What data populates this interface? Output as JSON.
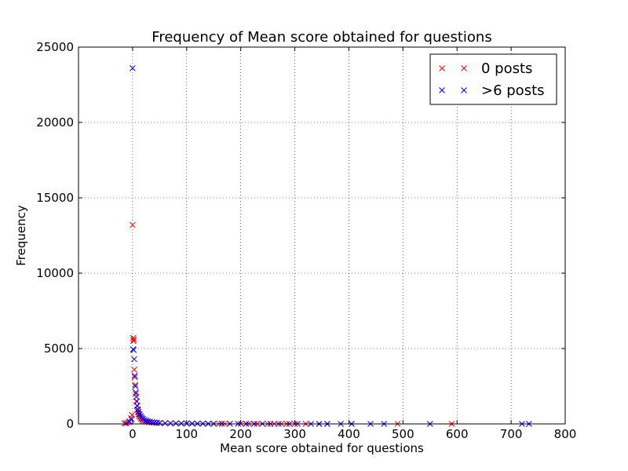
{
  "chart_data": {
    "type": "scatter",
    "title": "Frequency of Mean score obtained for questions",
    "xlabel": "Mean score obtained for questions",
    "ylabel": "Frequency",
    "xlim": [
      -100,
      800
    ],
    "ylim": [
      0,
      25000
    ],
    "xticks": [
      "0",
      "100",
      "200",
      "300",
      "400",
      "500",
      "600",
      "700",
      "800"
    ],
    "yticks": [
      "0",
      "5000",
      "10000",
      "15000",
      "20000",
      "25000"
    ],
    "grid": true,
    "legend_position": "top-right",
    "marker": "x",
    "series": [
      {
        "name": "0 posts",
        "color": "#ff0000",
        "points": [
          [
            -15,
            40
          ],
          [
            -10,
            90
          ],
          [
            -6,
            180
          ],
          [
            -3,
            380
          ],
          [
            -1,
            600
          ],
          [
            0,
            13200
          ],
          [
            1,
            5700
          ],
          [
            1.5,
            5500
          ],
          [
            2,
            5600
          ],
          [
            3,
            3600
          ],
          [
            4,
            3100
          ],
          [
            5,
            2600
          ],
          [
            6,
            2000
          ],
          [
            7,
            1500
          ],
          [
            8,
            1200
          ],
          [
            9,
            950
          ],
          [
            10,
            800
          ],
          [
            11,
            650
          ],
          [
            12,
            520
          ],
          [
            14,
            420
          ],
          [
            16,
            330
          ],
          [
            18,
            260
          ],
          [
            20,
            210
          ],
          [
            23,
            170
          ],
          [
            26,
            140
          ],
          [
            30,
            110
          ],
          [
            35,
            90
          ],
          [
            40,
            75
          ],
          [
            45,
            60
          ],
          [
            50,
            50
          ],
          [
            60,
            40
          ],
          [
            70,
            35
          ],
          [
            80,
            30
          ],
          [
            90,
            25
          ],
          [
            100,
            22
          ],
          [
            110,
            20
          ],
          [
            120,
            18
          ],
          [
            130,
            16
          ],
          [
            140,
            14
          ],
          [
            150,
            12
          ],
          [
            160,
            10
          ],
          [
            170,
            9
          ],
          [
            180,
            8
          ],
          [
            200,
            7
          ],
          [
            215,
            6
          ],
          [
            230,
            5
          ],
          [
            250,
            4
          ],
          [
            262,
            3
          ],
          [
            275,
            3
          ],
          [
            285,
            2
          ],
          [
            300,
            2
          ],
          [
            320,
            2
          ],
          [
            345,
            1
          ],
          [
            360,
            1
          ],
          [
            405,
            1
          ],
          [
            490,
            1
          ],
          [
            590,
            1
          ]
        ]
      },
      {
        "name": ">6 posts",
        "color": "#0000ff",
        "points": [
          [
            -12,
            30
          ],
          [
            -6,
            120
          ],
          [
            -2,
            300
          ],
          [
            0,
            23600
          ],
          [
            1,
            4950
          ],
          [
            2,
            4900
          ],
          [
            3,
            4300
          ],
          [
            4,
            3200
          ],
          [
            5,
            2500
          ],
          [
            6,
            2100
          ],
          [
            7,
            1800
          ],
          [
            8,
            1500
          ],
          [
            9,
            1200
          ],
          [
            10,
            950
          ],
          [
            11,
            780
          ],
          [
            13,
            640
          ],
          [
            15,
            520
          ],
          [
            17,
            420
          ],
          [
            19,
            340
          ],
          [
            22,
            270
          ],
          [
            25,
            220
          ],
          [
            28,
            180
          ],
          [
            32,
            150
          ],
          [
            36,
            120
          ],
          [
            40,
            100
          ],
          [
            45,
            85
          ],
          [
            50,
            70
          ],
          [
            60,
            55
          ],
          [
            70,
            45
          ],
          [
            80,
            38
          ],
          [
            90,
            32
          ],
          [
            100,
            28
          ],
          [
            110,
            24
          ],
          [
            120,
            20
          ],
          [
            130,
            18
          ],
          [
            140,
            15
          ],
          [
            150,
            13
          ],
          [
            165,
            11
          ],
          [
            180,
            9
          ],
          [
            195,
            8
          ],
          [
            210,
            7
          ],
          [
            225,
            6
          ],
          [
            240,
            5
          ],
          [
            255,
            4
          ],
          [
            270,
            4
          ],
          [
            290,
            3
          ],
          [
            305,
            3
          ],
          [
            330,
            2
          ],
          [
            345,
            2
          ],
          [
            360,
            2
          ],
          [
            385,
            1
          ],
          [
            405,
            1
          ],
          [
            440,
            1
          ],
          [
            465,
            1
          ],
          [
            550,
            1
          ],
          [
            720,
            1
          ],
          [
            733,
            1
          ]
        ]
      }
    ]
  }
}
